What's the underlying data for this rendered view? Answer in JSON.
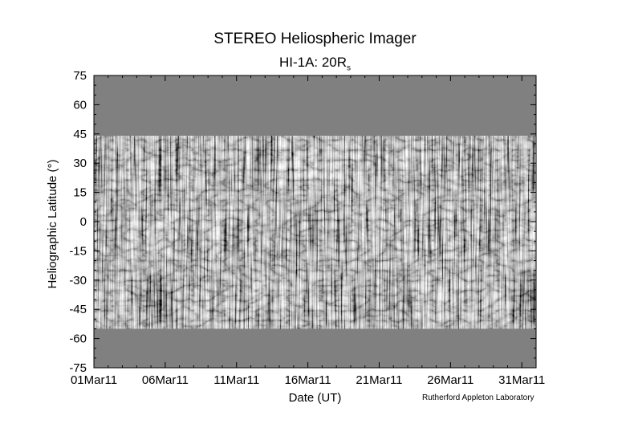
{
  "chart_data": {
    "type": "heatmap",
    "title": "STEREO Heliospheric Imager",
    "subtitle_main": "HI-1A: 20R",
    "subtitle_sub": "s",
    "xlabel": "Date (UT)",
    "ylabel": "Heliographic Latitude (°)",
    "credit": "Rutherford Appleton Laboratory",
    "x_ticks": [
      "01Mar11",
      "06Mar11",
      "11Mar11",
      "16Mar11",
      "21Mar11",
      "26Mar11",
      "31Mar11"
    ],
    "x_range_days": [
      0,
      31
    ],
    "y_ticks": [
      75,
      60,
      45,
      30,
      15,
      0,
      -15,
      -30,
      -45,
      -60,
      -75
    ],
    "ylim": [
      -75,
      75
    ],
    "data_latitude_range": [
      -55,
      44
    ],
    "fill_color": "#808080",
    "grid": false
  }
}
